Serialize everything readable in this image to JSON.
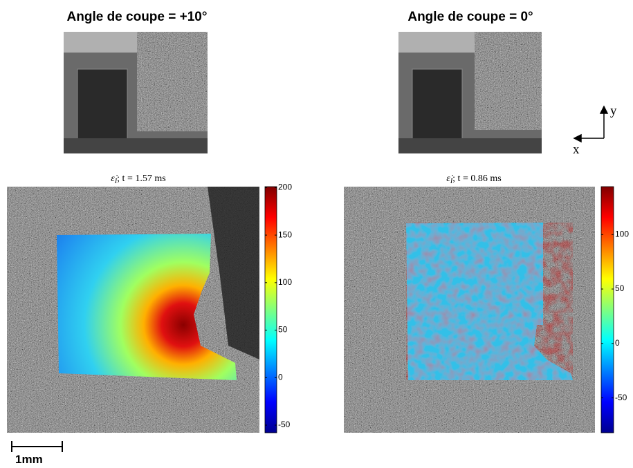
{
  "panels": [
    {
      "title": "Angle de coupe = +10°",
      "subtitle": {
        "symbol": "ε̇",
        "subscript": "I",
        "text": "; t = 1.57 ms"
      },
      "colorbar": {
        "lim": [
          -58,
          201
        ],
        "ticks": [
          -50,
          0,
          50,
          100,
          150,
          200
        ]
      }
    },
    {
      "title": "Angle de coupe = 0°",
      "subtitle": {
        "symbol": "ε̇",
        "subscript": "I",
        "text": "; t = 0.86 ms"
      },
      "colorbar": {
        "lim": [
          -82,
          144
        ],
        "ticks": [
          -50,
          0,
          50,
          100
        ]
      }
    }
  ],
  "axes": {
    "x": "x",
    "y": "y"
  },
  "scale_bar": "1mm"
}
